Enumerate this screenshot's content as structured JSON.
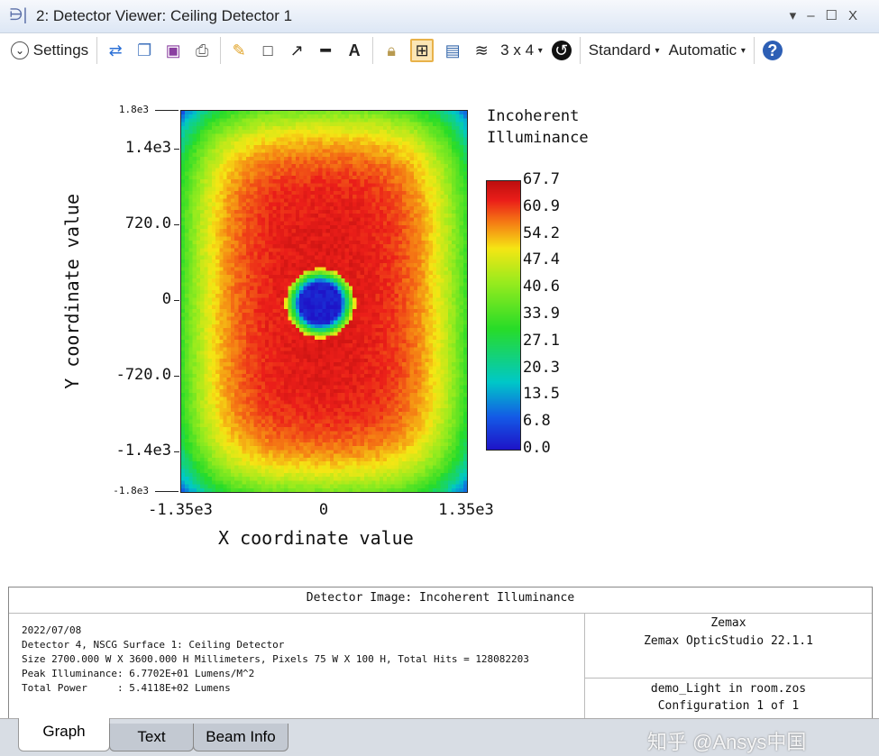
{
  "window": {
    "title": "2: Detector Viewer: Ceiling Detector 1",
    "controls": [
      "▾",
      "–",
      "☐",
      "X"
    ]
  },
  "toolbar": {
    "settings": "Settings",
    "layout": "3 x 4",
    "standard": "Standard",
    "automatic": "Automatic",
    "icons": [
      "refresh-icon",
      "copy-icon",
      "save-icon",
      "print-icon",
      "pencil-icon",
      "rectangle-icon",
      "arrow-icon",
      "line-icon",
      "text-icon",
      "lock-icon",
      "fit-icon",
      "window-icon",
      "layers-icon",
      "layout-grid",
      "clock-icon",
      "standard-dropdown",
      "automatic-dropdown",
      "help-icon"
    ]
  },
  "chart_data": {
    "type": "heatmap",
    "xlabel": "X coordinate value",
    "ylabel": "Y coordinate value",
    "xlim": [
      -1350,
      1350
    ],
    "ylim": [
      -1800,
      1800
    ],
    "xticks": [
      "-1.35e3",
      "0",
      "1.35e3"
    ],
    "yticks": [
      "1.8e3",
      "1.4e3",
      "720.0",
      "0",
      "-720.0",
      "-1.4e3",
      "-1.8e3"
    ],
    "colorbar": {
      "title": [
        "Incoherent",
        "Illuminance"
      ],
      "range": [
        0,
        67.7
      ],
      "ticks": [
        "67.7",
        "60.9",
        "54.2",
        "47.4",
        "40.6",
        "33.9",
        "27.1",
        "20.3",
        "13.5",
        "6.8",
        "0.0"
      ]
    },
    "pixels": [
      75,
      100
    ],
    "description_values": {
      "peak": 67.7,
      "center_min": 0
    }
  },
  "info": {
    "header": "Detector Image: Incoherent Illuminance",
    "lines": [
      "2022/07/08",
      "Detector 4, NSCG Surface 1: Ceiling Detector",
      "Size 2700.000 W X 3600.000 H Millimeters, Pixels 75 W X 100 H, Total Hits = 128082203",
      "Peak Illuminance: 6.7702E+01 Lumens/M^2",
      "Total Power     : 5.4118E+02 Lumens"
    ],
    "company": "Zemax",
    "product": "Zemax OpticStudio 22.1.1",
    "file": "demo_Light in room.zos",
    "config": "Configuration 1 of 1"
  },
  "tabs": [
    "Graph",
    "Text",
    "Beam Info"
  ],
  "watermark": "知乎 @Ansys中国"
}
